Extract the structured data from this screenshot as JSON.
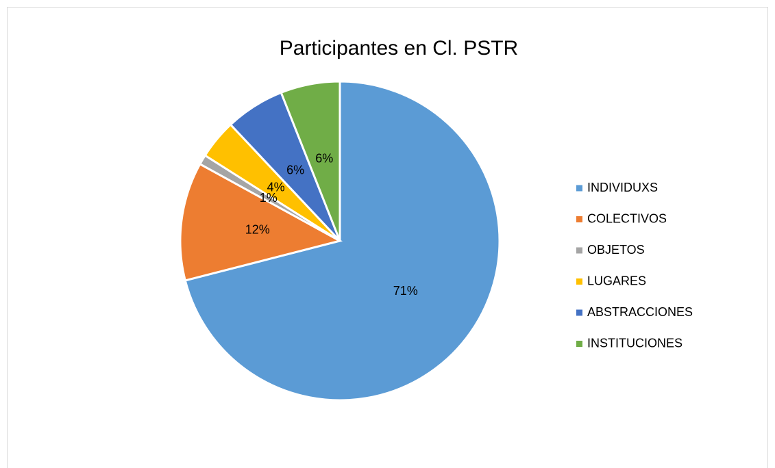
{
  "chart_data": {
    "type": "pie",
    "title": "Participantes en Cl. PSTR",
    "categories": [
      "INDIVIDUXS",
      "COLECTIVOS",
      "OBJETOS",
      "LUGARES",
      "ABSTRACCIONES",
      "INSTITUCIONES"
    ],
    "values": [
      71,
      12,
      1,
      4,
      6,
      6
    ],
    "value_labels": [
      "71%",
      "12%",
      "1%",
      "4%",
      "6%",
      "6%"
    ],
    "colors": [
      "#5b9bd5",
      "#ed7d31",
      "#a5a5a5",
      "#ffc000",
      "#4472c4",
      "#70ad47"
    ],
    "legend": "right"
  }
}
